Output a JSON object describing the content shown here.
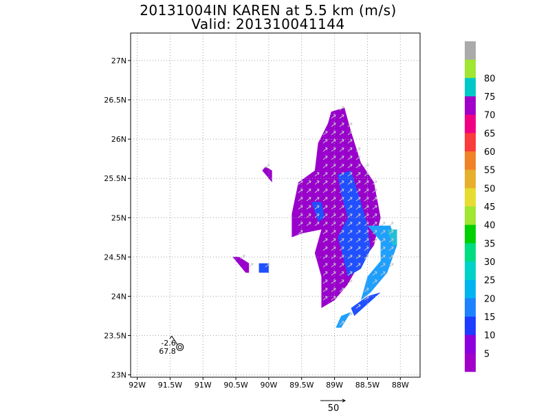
{
  "chart_data": {
    "type": "heatmap",
    "title": "20131004IN KAREN at 5.5 km (m/s)",
    "subtitle": "Valid: 201310041144",
    "xlim": [
      -92.1,
      -87.7
    ],
    "ylim": [
      22.97,
      27.35
    ],
    "x_ticks": [
      {
        "value": -92.0,
        "label": "92W"
      },
      {
        "value": -91.5,
        "label": "91.5W"
      },
      {
        "value": -91.0,
        "label": "91W"
      },
      {
        "value": -90.5,
        "label": "90.5W"
      },
      {
        "value": -90.0,
        "label": "90W"
      },
      {
        "value": -89.5,
        "label": "89.5W"
      },
      {
        "value": -89.0,
        "label": "89W"
      },
      {
        "value": -88.5,
        "label": "88.5W"
      },
      {
        "value": -88.0,
        "label": "88W"
      }
    ],
    "y_ticks": [
      {
        "value": 23.0,
        "label": "23N"
      },
      {
        "value": 23.5,
        "label": "23.5N"
      },
      {
        "value": 24.0,
        "label": "24N"
      },
      {
        "value": 24.5,
        "label": "24.5N"
      },
      {
        "value": 25.0,
        "label": "25N"
      },
      {
        "value": 25.5,
        "label": "25.5N"
      },
      {
        "value": 26.0,
        "label": "26N"
      },
      {
        "value": 26.5,
        "label": "26.5N"
      },
      {
        "value": 27.0,
        "label": "27N"
      }
    ],
    "grid": true,
    "regions": [
      {
        "level": "0-10",
        "color": "#9a00cc",
        "polygon": [
          [
            -89.05,
            26.35
          ],
          [
            -88.85,
            26.4
          ],
          [
            -88.75,
            26.1
          ],
          [
            -88.6,
            25.7
          ],
          [
            -88.4,
            25.45
          ],
          [
            -88.3,
            25.0
          ],
          [
            -88.4,
            24.65
          ],
          [
            -88.7,
            24.3
          ],
          [
            -88.8,
            24.15
          ],
          [
            -89.0,
            23.95
          ],
          [
            -89.2,
            23.85
          ],
          [
            -89.2,
            24.25
          ],
          [
            -89.3,
            24.55
          ],
          [
            -89.2,
            24.85
          ],
          [
            -89.5,
            24.8
          ],
          [
            -89.65,
            24.75
          ],
          [
            -89.65,
            25.05
          ],
          [
            -89.55,
            25.45
          ],
          [
            -89.3,
            25.6
          ],
          [
            -89.25,
            25.95
          ],
          [
            -89.1,
            26.2
          ]
        ]
      },
      {
        "level": "0-10",
        "color": "#9a00cc",
        "polygon": [
          [
            -89.95,
            25.45
          ],
          [
            -89.95,
            25.6
          ],
          [
            -90.05,
            25.65
          ],
          [
            -90.1,
            25.6
          ]
        ]
      },
      {
        "level": "0-10",
        "color": "#9a00cc",
        "polygon": [
          [
            -90.55,
            24.5
          ],
          [
            -90.45,
            24.5
          ],
          [
            -90.3,
            24.42
          ],
          [
            -90.3,
            24.3
          ],
          [
            -90.35,
            24.3
          ],
          [
            -90.45,
            24.4
          ]
        ]
      },
      {
        "level": "10-15",
        "color": "#2050ff",
        "polygon": [
          [
            -88.95,
            25.55
          ],
          [
            -88.75,
            25.6
          ],
          [
            -88.6,
            25.2
          ],
          [
            -88.5,
            24.9
          ],
          [
            -88.45,
            24.6
          ],
          [
            -88.6,
            24.35
          ],
          [
            -88.8,
            24.25
          ],
          [
            -88.9,
            24.6
          ],
          [
            -88.95,
            24.75
          ],
          [
            -88.8,
            25.0
          ],
          [
            -88.9,
            25.3
          ]
        ]
      },
      {
        "level": "10-15",
        "color": "#2050ff",
        "polygon": [
          [
            -90.15,
            24.42
          ],
          [
            -90.0,
            24.42
          ],
          [
            -90.0,
            24.3
          ],
          [
            -90.15,
            24.3
          ]
        ]
      },
      {
        "level": "10-15",
        "color": "#2050ff",
        "polygon": [
          [
            -88.5,
            24.0
          ],
          [
            -88.3,
            24.05
          ],
          [
            -88.7,
            23.75
          ],
          [
            -88.75,
            23.85
          ]
        ]
      },
      {
        "level": "15-20",
        "color": "#1ea0ff",
        "polygon": [
          [
            -88.5,
            24.9
          ],
          [
            -88.15,
            24.9
          ],
          [
            -88.05,
            24.65
          ],
          [
            -88.2,
            24.3
          ],
          [
            -88.45,
            24.05
          ],
          [
            -88.6,
            23.95
          ],
          [
            -88.5,
            24.25
          ],
          [
            -88.3,
            24.45
          ],
          [
            -88.3,
            24.7
          ]
        ]
      },
      {
        "level": "15-20",
        "color": "#1ea0ff",
        "polygon": [
          [
            -88.9,
            23.75
          ],
          [
            -88.75,
            23.8
          ],
          [
            -88.9,
            23.6
          ],
          [
            -88.98,
            23.6
          ]
        ]
      },
      {
        "level": "20-25",
        "color": "#20c0d8",
        "polygon": [
          [
            -88.2,
            24.85
          ],
          [
            -88.05,
            24.85
          ],
          [
            -88.05,
            24.65
          ],
          [
            -88.12,
            24.65
          ]
        ]
      },
      {
        "level": "10-15",
        "color": "#2050ff",
        "polygon": [
          [
            -89.35,
            25.2
          ],
          [
            -89.2,
            25.2
          ],
          [
            -89.15,
            25.0
          ],
          [
            -89.25,
            24.95
          ]
        ]
      }
    ],
    "station": {
      "lon": -91.35,
      "lat": 23.38,
      "labels": [
        "-2.6",
        "67.8"
      ]
    },
    "vector_scale": {
      "label": "50",
      "value": 50,
      "units": "m/s"
    },
    "colorbar": {
      "orientation": "vertical",
      "labels": [
        "5",
        "10",
        "15",
        "20",
        "25",
        "30",
        "35",
        "40",
        "45",
        "50",
        "55",
        "60",
        "65",
        "70",
        "75",
        "80"
      ],
      "colors": [
        "#a000c8",
        "#8c00dc",
        "#1e3cff",
        "#1e82ff",
        "#00b4f0",
        "#00d2c8",
        "#00dc82",
        "#00d000",
        "#a0e632",
        "#e6dc32",
        "#e6af2d",
        "#f08228",
        "#fa3c3c",
        "#f00082",
        "#a000c8",
        "#00c8c8",
        "#a0e632",
        "#aaaaaa"
      ]
    }
  }
}
